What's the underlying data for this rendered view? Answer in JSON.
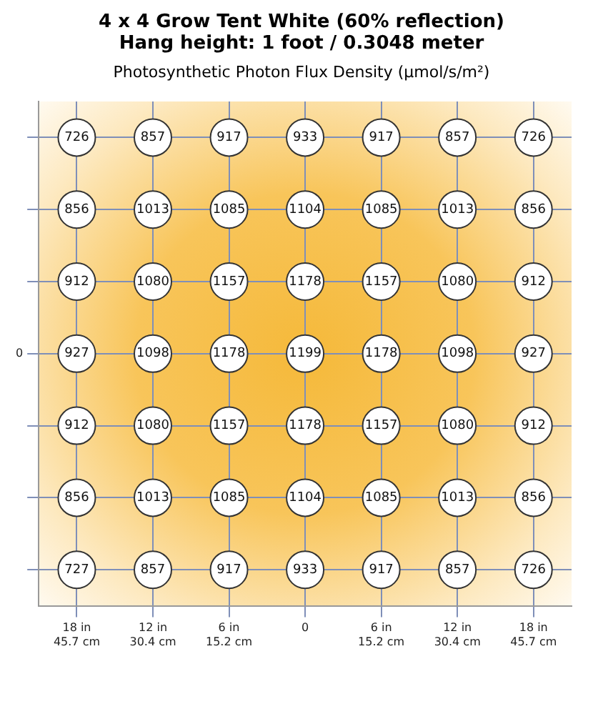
{
  "chart_data": {
    "type": "heatmap",
    "title": "4 x 4 Grow Tent White (60% reflection)",
    "subtitle": "Hang height: 1 foot / 0.3048 meter",
    "annotations": [
      "Photosynthetic Photon Flux Density (µmol/s/m²)"
    ],
    "categories": [
      "18 in\n45.7 cm",
      "12 in\n30.4 cm",
      "6 in\n15.2 cm",
      "0",
      "6 in\n15.2 cm",
      "12 in\n30.4 cm",
      "18 in\n45.7 cm"
    ],
    "y_categories": [
      null,
      null,
      null,
      "0",
      null,
      null,
      null
    ],
    "cells": [
      [
        726,
        857,
        917,
        933,
        917,
        857,
        726
      ],
      [
        856,
        1013,
        1085,
        1104,
        1085,
        1013,
        856
      ],
      [
        912,
        1080,
        1157,
        1178,
        1157,
        1080,
        912
      ],
      [
        927,
        1098,
        1178,
        1199,
        1178,
        1098,
        927
      ],
      [
        912,
        1080,
        1157,
        1178,
        1157,
        1080,
        912
      ],
      [
        856,
        1013,
        1085,
        1104,
        1085,
        1013,
        856
      ],
      [
        727,
        857,
        917,
        933,
        917,
        857,
        726
      ]
    ],
    "grid": true,
    "data_labels": true
  }
}
